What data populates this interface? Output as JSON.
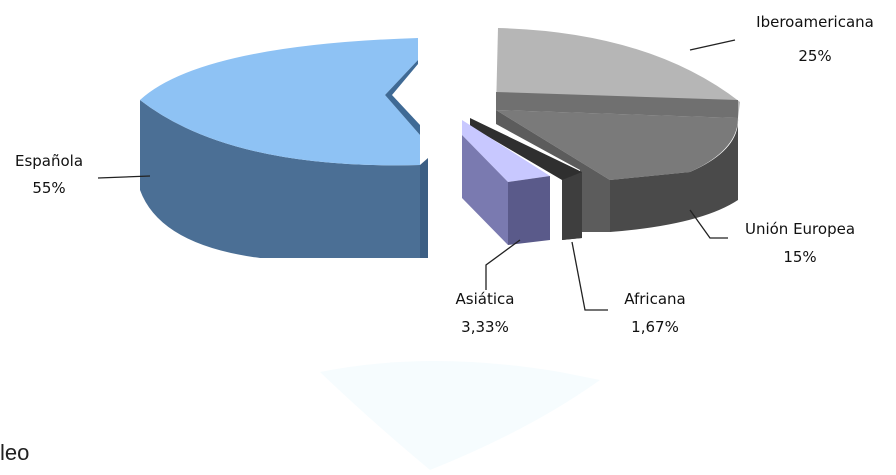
{
  "chart_data": {
    "type": "pie",
    "categories": [
      "Española",
      "Iberoamericana",
      "Unión Europea",
      "Africana",
      "Asiática"
    ],
    "values": [
      55,
      25,
      15,
      1.67,
      3.33
    ],
    "labels": {
      "Española": "55%",
      "Iberoamericana": "25%",
      "Unión Europea": "15%",
      "Africana": "1,67%",
      "Asiática": "3,33%"
    },
    "legend": "none",
    "colors": {
      "Española": "#8ec2f4",
      "Iberoamericana": "#b6b6b6",
      "Unión Europea": "#5c5c5c",
      "Africana": "#3e3e3e",
      "Asiática": "#c8c8ff"
    }
  },
  "footer": {
    "text": "leo"
  }
}
